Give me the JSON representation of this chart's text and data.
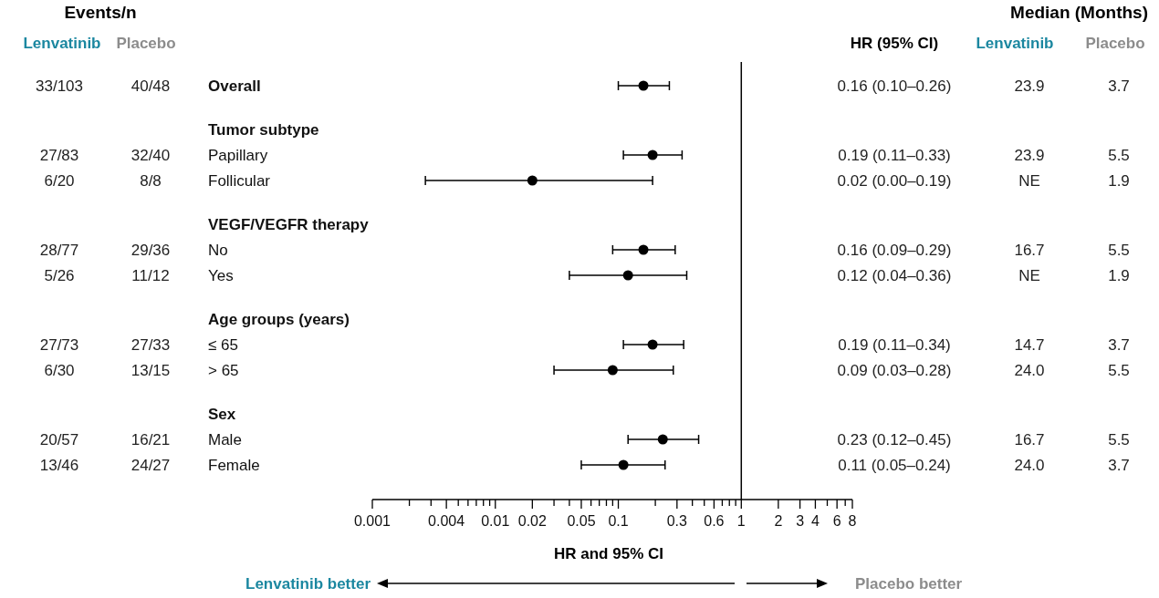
{
  "chart_data": {
    "type": "scatter",
    "orientation": "horizontal",
    "log": "x",
    "marker": "circle",
    "categories": [
      "Overall",
      "Tumor subtype",
      "Papillary",
      "Follicular",
      "VEGF/VEGFR therapy",
      "No",
      "Yes",
      "Age groups (years)",
      "≤ 65",
      "> 65",
      "Sex",
      "Male",
      "Female"
    ],
    "series": [
      {
        "name": "HR (95% CI)",
        "color": "#000000",
        "values": [
          0.16,
          null,
          0.19,
          0.02,
          null,
          0.16,
          0.12,
          null,
          0.19,
          0.09,
          null,
          0.23,
          0.11
        ],
        "errors": [
          [
            0.1,
            0.26
          ],
          null,
          [
            0.11,
            0.33
          ],
          [
            0.0027,
            0.19
          ],
          null,
          [
            0.09,
            0.29
          ],
          [
            0.04,
            0.36
          ],
          null,
          [
            0.11,
            0.34
          ],
          [
            0.03,
            0.28
          ],
          null,
          [
            0.12,
            0.45
          ],
          [
            0.05,
            0.24
          ]
        ],
        "value_labels": [
          "0.16 (0.10–0.26)",
          null,
          "0.19 (0.11–0.33)",
          "0.02 (0.00–0.19)",
          null,
          "0.16 (0.09–0.29)",
          "0.12 (0.04–0.36)",
          null,
          "0.19 (0.11–0.34)",
          "0.09 (0.03–0.28)",
          null,
          "0.23 (0.12–0.45)",
          "0.11 (0.05–0.24)"
        ]
      },
      {
        "name": "Lenvatinib",
        "type": "other",
        "color": "#1b87a0",
        "values": [
          null,
          null,
          null,
          null,
          null,
          null,
          null,
          null,
          null,
          null,
          null,
          null,
          null
        ],
        "value_labels": [
          "33/103",
          null,
          "27/83",
          "6/20",
          null,
          "28/77",
          "5/26",
          null,
          "27/73",
          "6/30",
          null,
          "20/57",
          "13/46"
        ]
      },
      {
        "name": "Placebo",
        "type": "other",
        "color": "#8c8c8c",
        "values": [
          null,
          null,
          null,
          null,
          null,
          null,
          null,
          null,
          null,
          null,
          null,
          null,
          null
        ],
        "value_labels": [
          "40/48",
          null,
          "32/40",
          "8/8",
          null,
          "29/36",
          "11/12",
          null,
          "27/33",
          "13/15",
          null,
          "16/21",
          "24/27"
        ]
      },
      {
        "name": "Lenvatinib",
        "type": "other",
        "color": "#1b87a0",
        "values": [
          null,
          null,
          null,
          null,
          null,
          null,
          null,
          null,
          null,
          null,
          null,
          null,
          null
        ],
        "value_labels": [
          "23.9",
          null,
          "23.9",
          "NE",
          null,
          "16.7",
          "NE",
          null,
          "14.7",
          "24.0",
          null,
          "16.7",
          "24.0"
        ]
      },
      {
        "name": "Placebo",
        "type": "other",
        "color": "#8c8c8c",
        "values": [
          null,
          null,
          null,
          null,
          null,
          null,
          null,
          null,
          null,
          null,
          null,
          null,
          null
        ],
        "value_labels": [
          "3.7",
          null,
          "5.5",
          "1.9",
          null,
          "5.5",
          "1.9",
          null,
          "3.7",
          "5.5",
          null,
          "5.5",
          "3.7"
        ]
      }
    ],
    "xlim": [
      0.001,
      8
    ],
    "xticks": [
      0.001,
      {
        "value": 0.002,
        "label": null
      },
      {
        "value": 0.003,
        "label": null
      },
      0.004,
      {
        "value": 0.005,
        "label": null
      },
      {
        "value": 0.006,
        "label": null
      },
      {
        "value": 0.007,
        "label": null
      },
      {
        "value": 0.008,
        "label": null
      },
      {
        "value": 0.009,
        "label": null
      },
      0.01,
      0.02,
      {
        "value": 0.03,
        "label": null
      },
      {
        "value": 0.04,
        "label": null
      },
      0.05,
      {
        "value": 0.06,
        "label": null
      },
      {
        "value": 0.07,
        "label": null
      },
      {
        "value": 0.08,
        "label": null
      },
      {
        "value": 0.09,
        "label": null
      },
      0.1,
      {
        "value": 0.2,
        "label": null
      },
      0.3,
      {
        "value": 0.4,
        "label": null
      },
      {
        "value": 0.5,
        "label": null
      },
      0.6,
      {
        "value": 0.7,
        "label": null
      },
      {
        "value": 0.8,
        "label": null
      },
      {
        "value": 0.9,
        "label": null
      },
      1,
      2,
      3,
      4,
      {
        "value": 5,
        "label": null
      },
      6,
      {
        "value": 7,
        "label": null
      },
      8
    ],
    "xlabel": "HR and 95% CI",
    "ref_lines": [
      {
        "axis": "x",
        "value": 1,
        "color": "#000000"
      }
    ],
    "annotations": [
      "Events/n",
      "Median (Months)",
      "Lenvatinib better",
      "Placebo better"
    ]
  }
}
